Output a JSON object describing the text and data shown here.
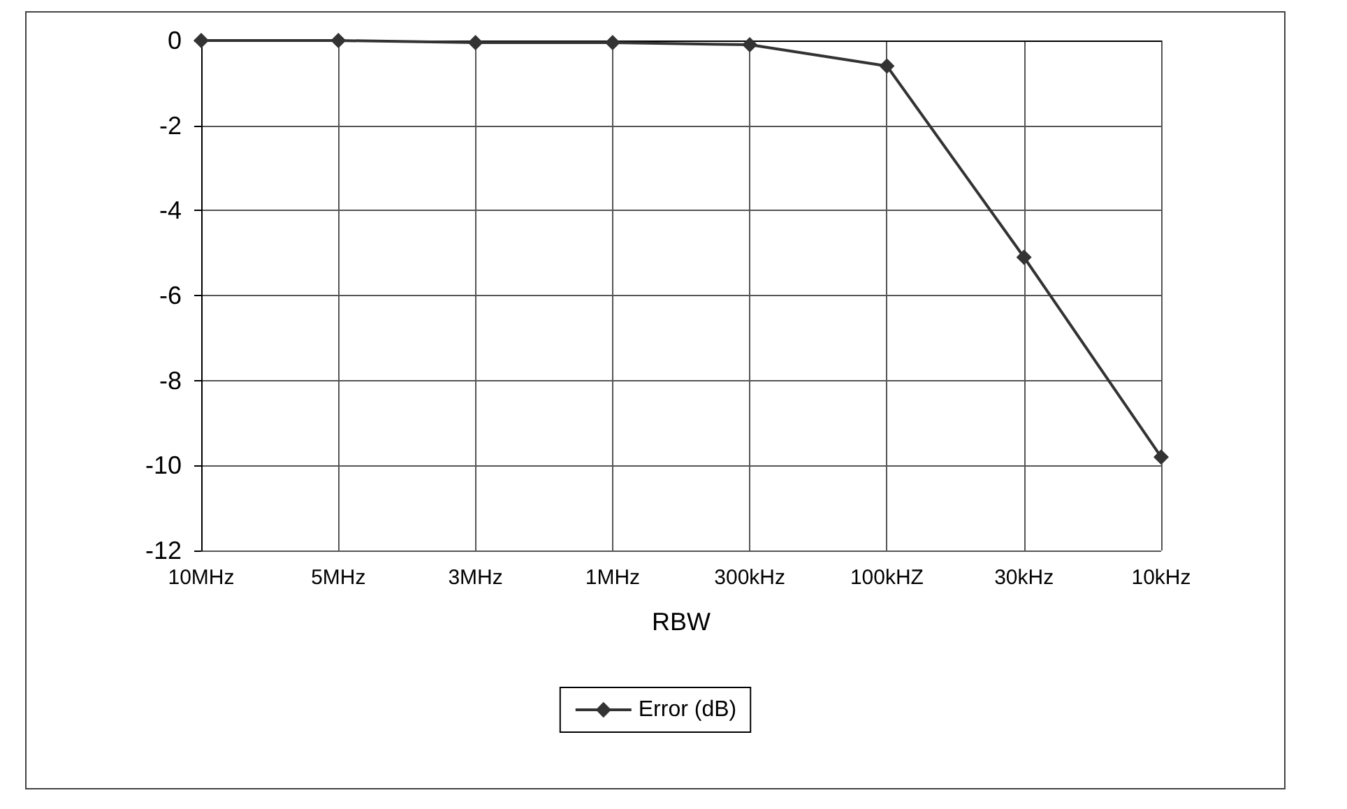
{
  "chart_data": {
    "type": "line",
    "xlabel": "RBW",
    "categories": [
      "10MHz",
      "5MHz",
      "3MHz",
      "1MHz",
      "300kHz",
      "100kHZ",
      "30kHz",
      "10kHz"
    ],
    "series": [
      {
        "name": "Error (dB)",
        "color": "#333333",
        "values": [
          0,
          0,
          -0.05,
          -0.05,
          -0.1,
          -0.6,
          -5.1,
          -9.8
        ]
      }
    ],
    "ylim": [
      -12,
      0
    ],
    "yticks": [
      -12,
      -10,
      -8,
      -6,
      -4,
      -2,
      0
    ],
    "grid": true,
    "legend": "bottom",
    "marker": "diamond",
    "line_style": "solid"
  }
}
